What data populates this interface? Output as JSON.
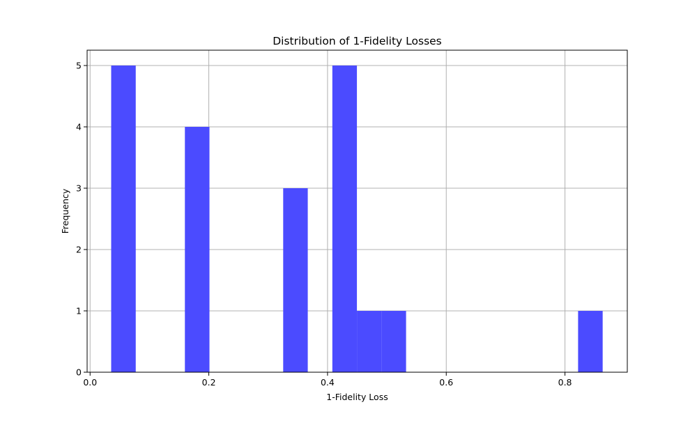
{
  "chart_data": {
    "type": "bar",
    "title": "Distribution of 1-Fidelity Losses",
    "xlabel": "1-Fidelity Loss",
    "ylabel": "Frequency",
    "xlim": [
      -0.005,
      0.905
    ],
    "ylim": [
      0,
      5.25
    ],
    "xticks": [
      0.0,
      0.2,
      0.4,
      0.6,
      0.8
    ],
    "xtick_labels": [
      "0.0",
      "0.2",
      "0.4",
      "0.6",
      "0.8"
    ],
    "yticks": [
      0,
      1,
      2,
      3,
      4,
      5
    ],
    "ytick_labels": [
      "0",
      "1",
      "2",
      "3",
      "4",
      "5"
    ],
    "grid": true,
    "legend": "none",
    "bar_color": "#4b4bff",
    "bin_width": 0.0414,
    "bins": [
      {
        "x0": 0.0355,
        "x1": 0.0769,
        "value": 5
      },
      {
        "x0": 0.1597,
        "x1": 0.2011,
        "value": 4
      },
      {
        "x0": 0.3253,
        "x1": 0.3667,
        "value": 3
      },
      {
        "x0": 0.4081,
        "x1": 0.4495,
        "value": 5
      },
      {
        "x0": 0.4495,
        "x1": 0.4909,
        "value": 1
      },
      {
        "x0": 0.4909,
        "x1": 0.5323,
        "value": 1
      },
      {
        "x0": 0.8221,
        "x1": 0.8635,
        "value": 1
      }
    ]
  }
}
